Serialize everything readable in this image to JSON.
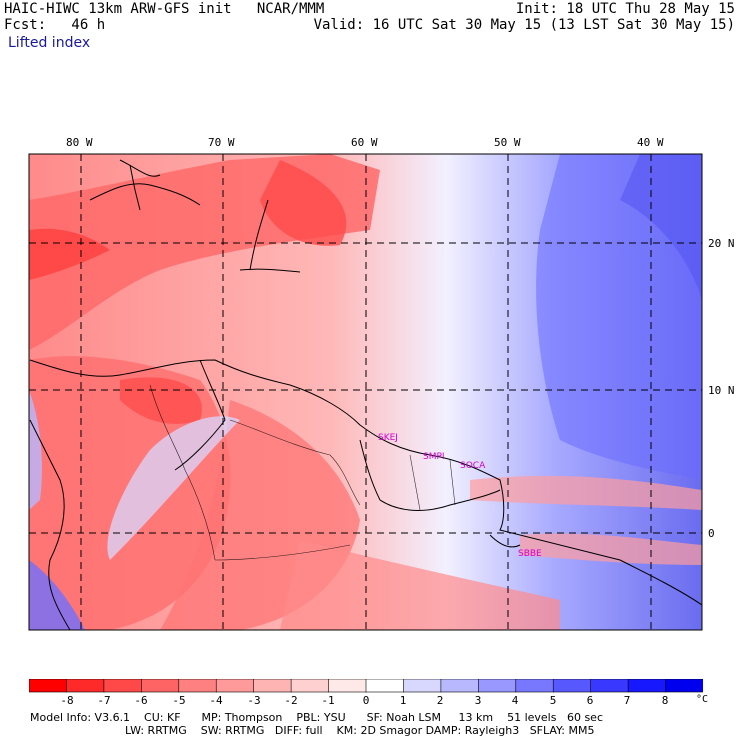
{
  "header": {
    "title": "HAIC-HIWC 13km ARW-GFS init   NCAR/MMM",
    "fcst": "Fcst:   46 h",
    "field": "Lifted index",
    "init": "Init: 18 UTC Thu 28 May 15",
    "valid": "Valid: 16 UTC Sat 30 May 15 (13 LST Sat 30 May 15)"
  },
  "map": {
    "lon_labels": [
      "80 W",
      "70 W",
      "60 W",
      "50 W",
      "40 W"
    ],
    "lat_labels": [
      "20 N",
      "10 N",
      "0"
    ],
    "cities": [
      "SKEJ",
      "SMPI",
      "SOCA",
      "SBBE"
    ]
  },
  "colorbar": {
    "labels": [
      "-8",
      "-7",
      "-6",
      "-5",
      "-4",
      "-3",
      "-2",
      "-1",
      "0",
      "1",
      "2",
      "3",
      "4",
      "5",
      "6",
      "7",
      "8"
    ],
    "unit": "°C",
    "colors": [
      "#ff0000",
      "#fe2a2a",
      "#ff4848",
      "#ff6464",
      "#ff8080",
      "#ff9a9a",
      "#ffb4b4",
      "#ffd0d0",
      "#ffe8e8",
      "#ffffff",
      "#d8d8ff",
      "#b8b8ff",
      "#9898ff",
      "#7878ff",
      "#5858ff",
      "#3838ff",
      "#1818ff",
      "#0000ee"
    ]
  },
  "footer": {
    "line1": "Model Info: V3.6.1    CU: KF      MP: Thompson    PBL: YSU      SF: Noah LSM     13 km    51 levels   60 sec",
    "line2": "LW: RRTMG    SW: RRTMG   DIFF: full    KM: 2D Smagor DAMP: Rayleigh3   SFLAY: MM5"
  }
}
